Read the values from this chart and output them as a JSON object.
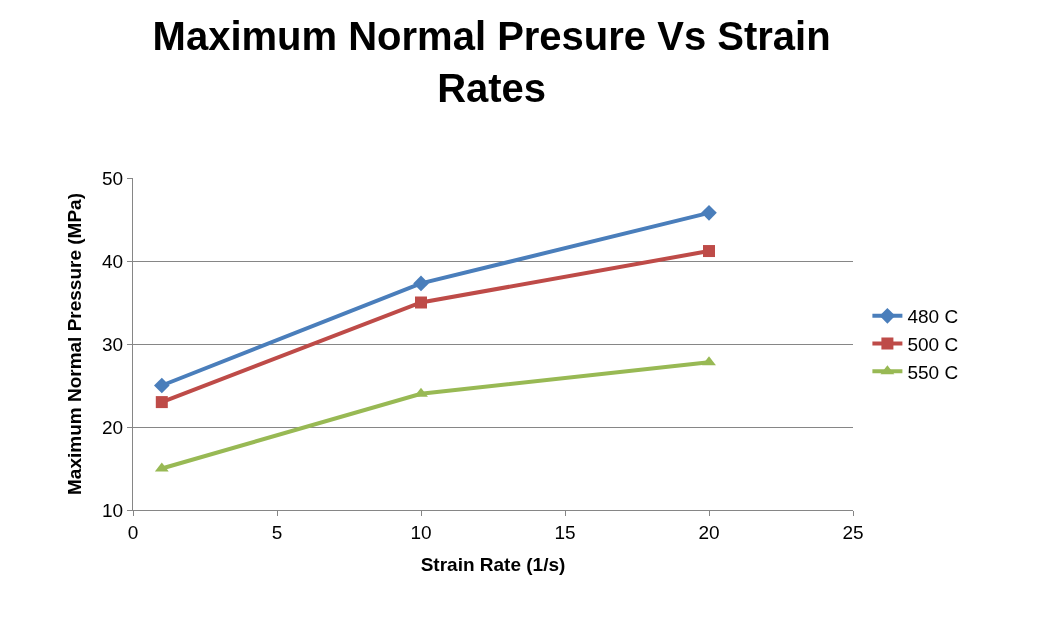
{
  "chart_data": {
    "type": "line",
    "title": "Maximum Normal Presure Vs Strain Rates",
    "xlabel": "Strain Rate (1/s)",
    "ylabel": "Maximum Normal Pressure (MPa)",
    "x": [
      1,
      10,
      20
    ],
    "series": [
      {
        "name": "480 C",
        "color": "#4a7ebb",
        "values": [
          25,
          37.3,
          45.8
        ],
        "marker": "diamond"
      },
      {
        "name": "500 C",
        "color": "#be4b48",
        "values": [
          23,
          35,
          41.2
        ],
        "marker": "square"
      },
      {
        "name": "550 C",
        "color": "#98b954",
        "values": [
          15,
          24,
          27.8
        ],
        "marker": "triangle"
      }
    ],
    "xlim": [
      0,
      25
    ],
    "xticks": [
      0,
      5,
      10,
      15,
      20,
      25
    ],
    "ylim": [
      10,
      50
    ],
    "yticks": [
      10,
      20,
      30,
      40,
      50
    ],
    "grid": "y",
    "legend": "right",
    "line_style": "solid"
  }
}
